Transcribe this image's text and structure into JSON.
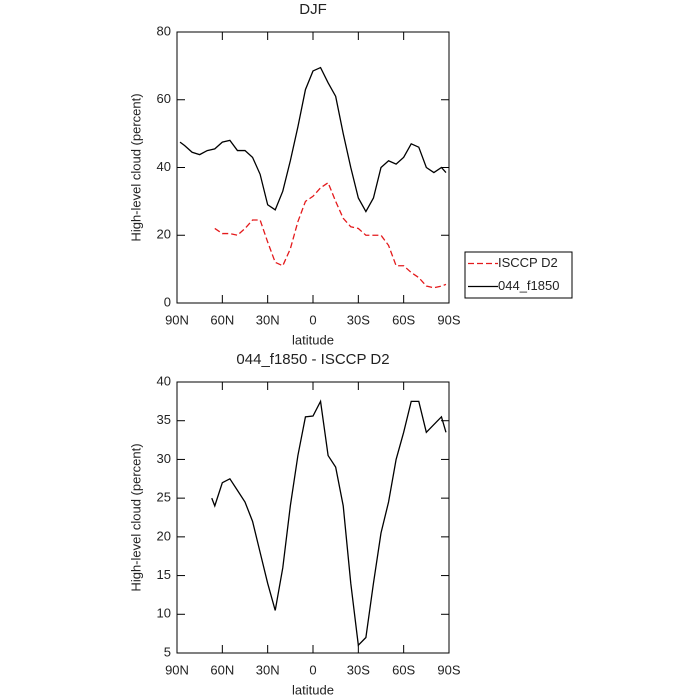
{
  "chart_data": [
    {
      "type": "line",
      "title": "DJF",
      "xlabel": "latitude",
      "ylabel": "High-level cloud (percent)",
      "x": [
        88,
        85,
        80,
        75,
        70,
        65,
        60,
        55,
        50,
        45,
        40,
        35,
        30,
        25,
        20,
        15,
        10,
        5,
        0,
        -5,
        -10,
        -15,
        -20,
        -25,
        -30,
        -35,
        -40,
        -45,
        -50,
        -55,
        -60,
        -65,
        -70,
        -75,
        -80,
        -85,
        -88
      ],
      "series": [
        {
          "name": "ISCCP D2",
          "color": "#e41a1c",
          "style": "dashed",
          "values": [
            null,
            null,
            null,
            null,
            null,
            22,
            20.5,
            20.5,
            20,
            22,
            24.5,
            24.5,
            18,
            12,
            11,
            16,
            24,
            30,
            31.5,
            34,
            35.5,
            30,
            25,
            22.5,
            22,
            20,
            20,
            20,
            17,
            11,
            11,
            9,
            7.5,
            5,
            4.5,
            5,
            5.5
          ]
        },
        {
          "name": "044_f1850",
          "color": "#000000",
          "style": "solid",
          "values": [
            47.5,
            46.5,
            44.5,
            43.8,
            45,
            45.5,
            47.5,
            48,
            45,
            45,
            43,
            38,
            29,
            27.5,
            33,
            42,
            52,
            63,
            68.5,
            69.5,
            65,
            61,
            50,
            40,
            31,
            27,
            31,
            40,
            42,
            41,
            43,
            47,
            46,
            40,
            38.5,
            40,
            38.5
          ]
        }
      ],
      "xlim": [
        90,
        -90
      ],
      "xticks": [
        {
          "value": 90,
          "label": "90N"
        },
        {
          "value": 60,
          "label": "60N"
        },
        {
          "value": 30,
          "label": "30N"
        },
        0,
        {
          "value": -30,
          "label": "30S"
        },
        {
          "value": -60,
          "label": "60S"
        },
        {
          "value": -90,
          "label": "90S"
        }
      ],
      "ylim": [
        0,
        80
      ],
      "yticks": [
        0,
        20,
        40,
        60,
        80
      ],
      "legend": "right"
    },
    {
      "type": "line",
      "title": "044_f1850 - ISCCP D2",
      "xlabel": "latitude",
      "ylabel": "High-level cloud (percent)",
      "x": [
        67,
        65,
        60,
        55,
        50,
        45,
        40,
        35,
        30,
        25,
        20,
        15,
        10,
        5,
        0,
        -5,
        -10,
        -15,
        -20,
        -25,
        -30,
        -35,
        -40,
        -45,
        -50,
        -55,
        -60,
        -65,
        -70,
        -75,
        -80,
        -85,
        -88
      ],
      "series": [
        {
          "color": "#000000",
          "style": "solid",
          "values": [
            25,
            24,
            27,
            27.5,
            26,
            24.5,
            22,
            18,
            14,
            10.5,
            16,
            24,
            30.5,
            35.5,
            35.6,
            37.5,
            30.5,
            29,
            24,
            14,
            6,
            7,
            14,
            20.5,
            24.5,
            30,
            33.5,
            37.5,
            37.5,
            33.5,
            34.5,
            35.5,
            33.5
          ]
        }
      ],
      "xlim": [
        90,
        -90
      ],
      "xticks": [
        {
          "value": 90,
          "label": "90N"
        },
        {
          "value": 60,
          "label": "60N"
        },
        {
          "value": 30,
          "label": "30N"
        },
        0,
        {
          "value": -30,
          "label": "30S"
        },
        {
          "value": -60,
          "label": "60S"
        },
        {
          "value": -90,
          "label": "90S"
        }
      ],
      "ylim": [
        5,
        40
      ],
      "yticks": [
        5,
        10,
        15,
        20,
        25,
        30,
        35,
        40
      ]
    }
  ]
}
